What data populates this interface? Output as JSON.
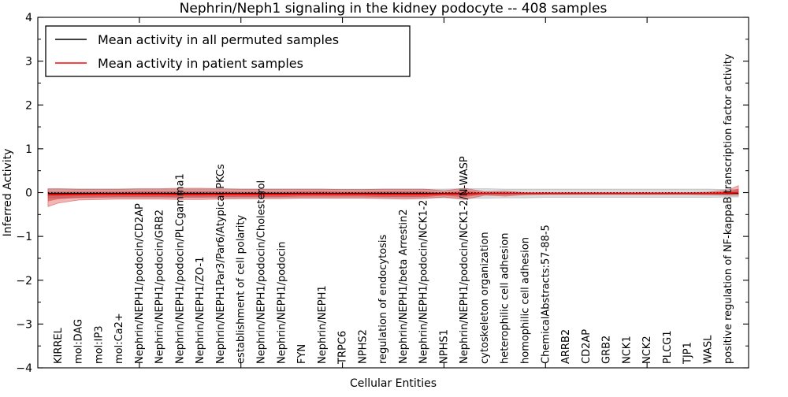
{
  "chart_data": {
    "type": "line",
    "title": "Nephrin/Neph1 signaling in the kidney podocyte -- 408 samples",
    "xlabel": "Cellular Entities",
    "ylabel": "Inferred Activity",
    "ylim": [
      -4,
      4
    ],
    "xlim": [
      0,
      35
    ],
    "grid": false,
    "legend_position": "upper left",
    "yticks": [
      -4,
      -3,
      -2,
      -1,
      0,
      1,
      2,
      3,
      4
    ],
    "ytick_labels": [
      "−4",
      "−3",
      "−2",
      "−1",
      "0",
      "1",
      "2",
      "3",
      "4"
    ],
    "top_axis_ticks": [
      5,
      10,
      15,
      20,
      25,
      30
    ],
    "categories": [
      "KIRREL",
      "mol:DAG",
      "mol:IP3",
      "mol:Ca2+",
      "Nephrin/NEPH1/podocin/CD2AP",
      "Nephrin/NEPH1/podocin/GRB2",
      "Nephrin/NEPH1/podocin/PLCgamma1",
      "Nephrin/NEPH1/ZO-1",
      "Nephrin/NEPH1Par3/Par6/Atypical PKCs",
      "establishment of cell polarity",
      "Nephrin/NEPH1/podocin/Cholesterol",
      "Nephrin/NEPH1/podocin",
      "FYN",
      "Nephrin/NEPH1",
      "TRPC6",
      "NPHS2",
      "regulation of endocytosis",
      "Nephrin/NEPH1/beta Arrestin2",
      "Nephrin/NEPH1/podocin/NCK1-2",
      "NPHS1",
      "Nephrin/NEPH1/podocin/NCK1-2/N-WASP",
      "cytoskeleton organization",
      "heterophilic cell adhesion",
      "homophilic cell adhesion",
      "ChemicalAbstracts:57-88-5",
      "ARRB2",
      "CD2AP",
      "GRB2",
      "NCK1",
      "NCK2",
      "PLCG1",
      "TJP1",
      "WASL",
      "positive regulation of NF-kappaB transcription factor activity"
    ],
    "legend": [
      {
        "label": "Mean activity in all permuted samples",
        "color": "#000000",
        "style": "solid"
      },
      {
        "label": "Mean activity in patient samples",
        "color": "#ff0000",
        "style": "solid"
      }
    ],
    "series": {
      "xs": [
        0.5,
        1,
        2,
        3,
        4,
        5,
        6,
        7,
        8,
        9,
        10,
        11,
        12,
        13,
        14,
        15,
        16,
        17,
        18,
        19,
        20,
        21,
        22,
        23,
        24,
        25,
        26,
        27,
        28,
        29,
        30,
        31,
        32,
        33,
        34,
        34.5
      ],
      "permuted_mean_y": -0.02,
      "zero_dotted_y": 0.0,
      "patient_mean": [
        -0.05,
        -0.05,
        -0.045,
        -0.04,
        -0.04,
        -0.04,
        -0.04,
        -0.045,
        -0.045,
        -0.04,
        -0.04,
        -0.04,
        -0.04,
        -0.035,
        -0.035,
        -0.035,
        -0.035,
        -0.04,
        -0.04,
        -0.04,
        -0.03,
        -0.03,
        -0.02,
        -0.02,
        -0.02,
        -0.02,
        -0.02,
        -0.02,
        -0.02,
        -0.02,
        -0.02,
        -0.02,
        -0.02,
        -0.02,
        -0.01,
        0.0
      ],
      "patient_band_outer_top": [
        0.09,
        0.09,
        0.08,
        0.08,
        0.08,
        0.09,
        0.09,
        0.1,
        0.1,
        0.09,
        0.08,
        0.08,
        0.08,
        0.08,
        0.08,
        0.07,
        0.07,
        0.08,
        0.08,
        0.08,
        0.04,
        0.1,
        0.02,
        0.03,
        0.0,
        0.0,
        0.0,
        0.0,
        0.0,
        0.0,
        0.0,
        0.0,
        0.0,
        0.01,
        0.06,
        0.16
      ],
      "patient_band_outer_bottom": [
        -0.32,
        -0.24,
        -0.17,
        -0.16,
        -0.15,
        -0.15,
        -0.15,
        -0.16,
        -0.16,
        -0.15,
        -0.14,
        -0.14,
        -0.14,
        -0.13,
        -0.13,
        -0.13,
        -0.13,
        -0.14,
        -0.15,
        -0.14,
        -0.1,
        -0.16,
        -0.06,
        -0.08,
        -0.05,
        -0.04,
        -0.04,
        -0.04,
        -0.04,
        -0.04,
        -0.04,
        -0.04,
        -0.04,
        -0.05,
        -0.06,
        -0.06
      ],
      "patient_band_inner_top": [
        0.02,
        0.02,
        0.02,
        0.02,
        0.02,
        0.03,
        0.03,
        0.03,
        0.03,
        0.03,
        0.02,
        0.02,
        0.02,
        0.03,
        0.03,
        0.02,
        0.02,
        0.03,
        0.03,
        0.03,
        0.0,
        0.04,
        0.0,
        0.01,
        -0.01,
        -0.01,
        -0.01,
        -0.01,
        -0.01,
        -0.01,
        -0.01,
        -0.01,
        -0.01,
        0.0,
        0.02,
        0.09
      ],
      "patient_band_inner_bottom": [
        -0.2,
        -0.15,
        -0.12,
        -0.11,
        -0.1,
        -0.1,
        -0.1,
        -0.11,
        -0.11,
        -0.1,
        -0.1,
        -0.1,
        -0.1,
        -0.09,
        -0.09,
        -0.09,
        -0.09,
        -0.1,
        -0.1,
        -0.1,
        -0.07,
        -0.1,
        -0.04,
        -0.05,
        -0.03,
        -0.03,
        -0.03,
        -0.03,
        -0.03,
        -0.03,
        -0.03,
        -0.03,
        -0.03,
        -0.03,
        -0.04,
        -0.02
      ],
      "permuted_band_top": [
        0.08,
        0.08,
        0.08,
        0.08,
        0.08,
        0.08,
        0.08,
        0.08,
        0.08,
        0.08,
        0.08,
        0.08,
        0.08,
        0.08,
        0.08,
        0.08,
        0.08,
        0.08,
        0.08,
        0.08,
        0.08,
        0.09,
        0.09,
        0.08,
        0.08,
        0.08,
        0.08,
        0.08,
        0.08,
        0.08,
        0.08,
        0.08,
        0.08,
        0.08,
        0.07,
        0.07
      ],
      "permuted_band_bottom": [
        -0.12,
        -0.12,
        -0.12,
        -0.12,
        -0.12,
        -0.12,
        -0.12,
        -0.12,
        -0.12,
        -0.12,
        -0.12,
        -0.12,
        -0.12,
        -0.12,
        -0.12,
        -0.12,
        -0.12,
        -0.12,
        -0.12,
        -0.12,
        -0.12,
        -0.13,
        -0.13,
        -0.12,
        -0.12,
        -0.11,
        -0.11,
        -0.11,
        -0.11,
        -0.11,
        -0.11,
        -0.11,
        -0.11,
        -0.11,
        -0.1,
        -0.1
      ]
    },
    "colors": {
      "patient_line": "#ff0000",
      "permuted_line": "#000000",
      "patient_band_fill": "rgba(222,45,45,0.35)",
      "patient_band_inner_fill": "rgba(205,30,30,0.45)",
      "patient_band_edge": "rgba(185,35,35,0.45)",
      "permuted_band_fill": "rgba(130,130,130,0.30)",
      "permuted_band_edge": "rgba(120,120,120,0.35)",
      "axis": "#000000",
      "background": "#ffffff"
    }
  }
}
